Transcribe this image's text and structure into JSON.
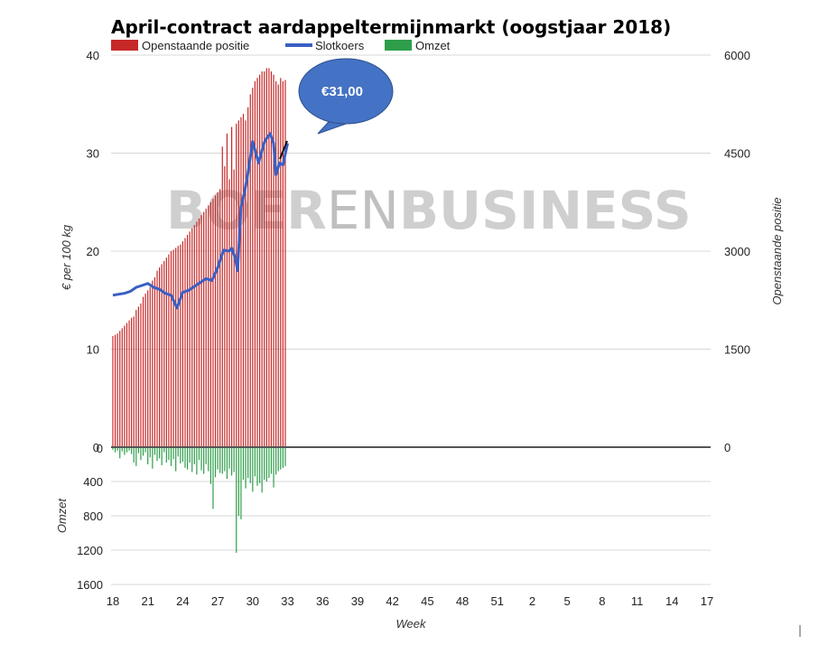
{
  "chart_data": {
    "type": "bar",
    "title": "April-contract aardappeltermijnmarkt (oogstjaar 2018)",
    "watermark": {
      "part1": "BOER",
      "part2": "EN",
      "part3": "BUSINESS"
    },
    "legend": [
      {
        "label": "Openstaande positie",
        "color": "#c62828"
      },
      {
        "label": "Slotkoers",
        "color": "#3a5fc4"
      },
      {
        "label": "Omzet",
        "color": "#2e9e4a"
      }
    ],
    "callout": {
      "text": "€31,00",
      "color": "#4472c4"
    },
    "xlabel": "Week",
    "x_ticks": [
      "18",
      "21",
      "24",
      "27",
      "30",
      "33",
      "36",
      "39",
      "42",
      "45",
      "48",
      "51",
      "2",
      "5",
      "8",
      "11",
      "14",
      "17"
    ],
    "x_range": [
      18,
      69
    ],
    "y_left": {
      "label": "€ per 100 kg",
      "range": [
        0,
        40
      ],
      "ticks": [
        "0",
        "10",
        "20",
        "30",
        "40"
      ]
    },
    "y_right": {
      "label": "Openstaande positie",
      "range": [
        0,
        6000
      ],
      "ticks": [
        "0",
        "1500",
        "3000",
        "4500",
        "6000"
      ]
    },
    "y_bottom": {
      "label": "Omzet",
      "range": [
        0,
        1600
      ],
      "ticks": [
        "0",
        "400",
        "800",
        "1200",
        "1600"
      ]
    },
    "series": [
      {
        "name": "Openstaande positie",
        "kind": "bar",
        "axis": "right",
        "x": [
          18.0,
          18.2,
          18.4,
          18.6,
          18.8,
          19.0,
          19.2,
          19.4,
          19.6,
          19.8,
          20.0,
          20.2,
          20.4,
          20.6,
          20.8,
          21.0,
          21.2,
          21.4,
          21.6,
          21.8,
          22.0,
          22.2,
          22.4,
          22.6,
          22.8,
          23.0,
          23.2,
          23.4,
          23.6,
          23.8,
          24.0,
          24.2,
          24.4,
          24.6,
          24.8,
          25.0,
          25.2,
          25.4,
          25.6,
          25.8,
          26.0,
          26.2,
          26.4,
          26.6,
          26.8,
          27.0,
          27.2,
          27.4,
          27.6,
          27.8,
          28.0,
          28.2,
          28.4,
          28.6,
          28.8,
          29.0,
          29.2,
          29.4,
          29.6,
          29.8,
          30.0,
          30.2,
          30.4,
          30.6,
          30.8,
          31.0,
          31.2,
          31.4,
          31.6,
          31.8,
          32.0,
          32.2,
          32.4,
          32.6,
          32.8
        ],
        "values": [
          1700,
          1720,
          1740,
          1780,
          1820,
          1860,
          1900,
          1940,
          1980,
          2000,
          2100,
          2150,
          2200,
          2300,
          2350,
          2400,
          2450,
          2550,
          2600,
          2700,
          2750,
          2800,
          2850,
          2900,
          2950,
          3000,
          3020,
          3050,
          3080,
          3100,
          3150,
          3200,
          3250,
          3300,
          3350,
          3400,
          3450,
          3500,
          3550,
          3600,
          3650,
          3700,
          3750,
          3800,
          3850,
          3900,
          3950,
          4600,
          4300,
          4800,
          4100,
          4900,
          4250,
          4950,
          5000,
          5050,
          5100,
          5000,
          5200,
          5400,
          5500,
          5600,
          5650,
          5700,
          5750,
          5750,
          5800,
          5800,
          5750,
          5700,
          5600,
          5550,
          5650,
          5600,
          5620
        ]
      },
      {
        "name": "Slotkoers",
        "kind": "line",
        "axis": "left",
        "x": [
          18,
          18.5,
          19,
          19.5,
          20,
          20.5,
          21,
          21.5,
          22,
          22.5,
          23,
          23.5,
          24,
          24.5,
          25,
          25.5,
          26,
          26.5,
          27,
          27.5,
          28,
          28.2,
          28.5,
          28.7,
          29,
          29.3,
          29.6,
          30,
          30.5,
          31,
          31.2,
          31.5,
          31.8,
          32,
          32.3,
          32.6,
          33
        ],
        "values": [
          15.5,
          15.6,
          15.7,
          15.9,
          16.3,
          16.5,
          16.7,
          16.3,
          16.1,
          15.7,
          15.5,
          14.2,
          15.8,
          16.0,
          16.4,
          16.8,
          17.2,
          17.0,
          18.3,
          20.1,
          20.0,
          20.3,
          19.3,
          18.0,
          24.5,
          26.0,
          28.0,
          31.2,
          29.0,
          31.1,
          31.5,
          32.0,
          31.0,
          27.8,
          29.0,
          28.8,
          31.0
        ]
      },
      {
        "name": "Omzet",
        "kind": "bar",
        "axis": "bottom",
        "x": [
          18.0,
          18.2,
          18.4,
          18.6,
          18.8,
          19.0,
          19.2,
          19.4,
          19.6,
          19.8,
          20.0,
          20.2,
          20.4,
          20.6,
          20.8,
          21.0,
          21.2,
          21.4,
          21.6,
          21.8,
          22.0,
          22.2,
          22.4,
          22.6,
          22.8,
          23.0,
          23.2,
          23.4,
          23.6,
          23.8,
          24.0,
          24.2,
          24.4,
          24.6,
          24.8,
          25.0,
          25.2,
          25.4,
          25.6,
          25.8,
          26.0,
          26.2,
          26.4,
          26.6,
          26.8,
          27.0,
          27.2,
          27.4,
          27.6,
          27.8,
          28.0,
          28.2,
          28.4,
          28.6,
          28.8,
          29.0,
          29.2,
          29.4,
          29.6,
          29.8,
          30.0,
          30.2,
          30.4,
          30.6,
          30.8,
          31.0,
          31.2,
          31.4,
          31.6,
          31.8,
          32.0,
          32.2,
          32.4,
          32.6,
          32.8
        ],
        "values": [
          30,
          60,
          40,
          130,
          50,
          90,
          60,
          40,
          80,
          180,
          220,
          70,
          150,
          100,
          60,
          200,
          120,
          250,
          90,
          160,
          130,
          210,
          60,
          180,
          150,
          220,
          140,
          280,
          110,
          190,
          170,
          240,
          260,
          180,
          290,
          200,
          320,
          150,
          270,
          310,
          200,
          280,
          430,
          720,
          350,
          260,
          300,
          310,
          280,
          370,
          250,
          330,
          290,
          1230,
          800,
          840,
          380,
          480,
          360,
          420,
          520,
          340,
          450,
          420,
          530,
          380,
          400,
          360,
          310,
          470,
          320,
          280,
          260,
          240,
          220
        ]
      }
    ]
  }
}
